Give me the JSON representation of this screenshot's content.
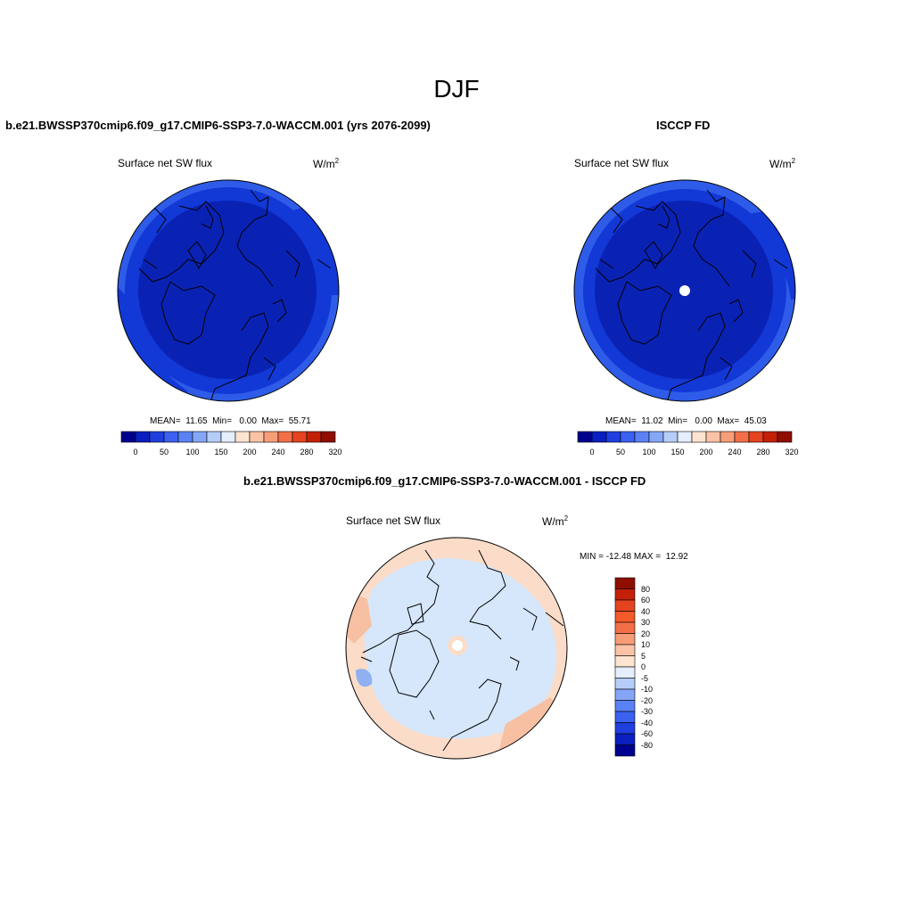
{
  "title": "DJF",
  "panels": {
    "model": {
      "title": "b.e21.BWSSP370cmip6.f09_g17.CMIP6-SSP3-7.0-WACCM.001 (yrs 2076-2099)",
      "variable": "Surface net SW flux",
      "units": "W/m",
      "units_exp": "2",
      "stats": "MEAN=  11.65  Min=   0.00  Max=  55.71"
    },
    "obs": {
      "title": "ISCCP FD",
      "variable": "Surface net SW flux",
      "units": "W/m",
      "units_exp": "2",
      "stats": "MEAN=  11.02  Min=   0.00  Max=  45.03"
    },
    "diff": {
      "title": "b.e21.BWSSP370cmip6.f09_g17.CMIP6-SSP3-7.0-WACCM.001 - ISCCP FD",
      "variable": "Surface net SW flux",
      "units": "W/m",
      "units_exp": "2",
      "stats": "MIN = -12.48 MAX =  12.92"
    }
  },
  "field_colorbar": {
    "ticks": [
      "0",
      "50",
      "100",
      "150",
      "200",
      "240",
      "280",
      "320"
    ],
    "colors": [
      "#00008f",
      "#0a1fbf",
      "#1f3fdf",
      "#3a61f0",
      "#5b82f5",
      "#85a6f7",
      "#b5cdf8",
      "#e4eefc",
      "#fde4d0",
      "#fbc3a6",
      "#f79d78",
      "#f26f48",
      "#e5431f",
      "#c42008",
      "#8f0e00"
    ]
  },
  "diff_colorbar": {
    "ticks": [
      "80",
      "60",
      "40",
      "30",
      "20",
      "10",
      "5",
      "0",
      "-5",
      "-10",
      "-20",
      "-30",
      "-40",
      "-60",
      "-80"
    ],
    "colors": [
      "#8f0e00",
      "#c42008",
      "#e5431f",
      "#f45a2a",
      "#f26f48",
      "#f79d78",
      "#fbc3a6",
      "#fde4d0",
      "#e4eefc",
      "#b5cdf8",
      "#85a6f7",
      "#5b82f5",
      "#3a61f0",
      "#1f3fdf",
      "#0a1fbf",
      "#00008f"
    ]
  },
  "map_colors": {
    "field_deep": "#0a22b4",
    "field_mid": "#1238d6",
    "field_light": "#2e5ce8",
    "diff_base": "#d6e7fb",
    "diff_warm": "#fbdcc8",
    "diff_warmer": "#f7c0a2",
    "diff_cool": "#8fb0f2"
  }
}
